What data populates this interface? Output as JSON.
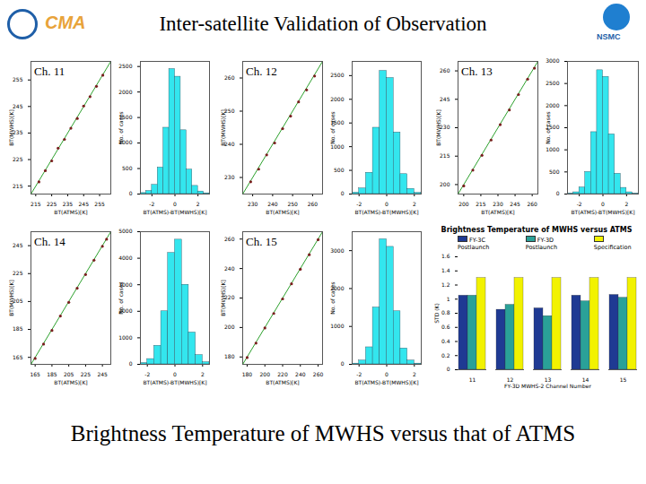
{
  "title": "Inter-satellite Validation of Observation",
  "logos": {
    "left": "CMA",
    "right": "NSMC"
  },
  "caption": "Brightness Temperature of MWHS versus that of ATMS",
  "chart_data": [
    {
      "type": "scatter",
      "title": "Ch. 11",
      "xlabel": "BT(ATMS)[K]",
      "ylabel": "BT(MWHS)[K]",
      "xlim": [
        212,
        262
      ],
      "xticks": [
        215,
        225,
        235,
        245,
        255
      ],
      "ylim": [
        212,
        262
      ],
      "yticks": [
        215,
        225,
        235,
        245,
        255
      ],
      "x": [
        217,
        221,
        225,
        229,
        233,
        237,
        241,
        245,
        249,
        253,
        257
      ],
      "y": [
        216.6,
        220.8,
        224.5,
        229.3,
        232.6,
        236.8,
        240.5,
        245.2,
        248.7,
        252.6,
        256.8
      ],
      "color": "#7a1f1f"
    },
    {
      "type": "histogram",
      "xlabel": "BT(ATMS)-BT(MWHS)[K]",
      "ylabel": "No. of cases",
      "bins": [
        -3,
        -2.5,
        -2,
        -1.5,
        -1,
        -0.5,
        0,
        0.5,
        1,
        1.5,
        2,
        2.5,
        3
      ],
      "values": [
        20,
        60,
        180,
        520,
        1300,
        2450,
        2300,
        1250,
        480,
        160,
        50,
        15
      ],
      "xlim": [
        -3,
        3
      ],
      "xticks": [
        -2,
        0,
        2
      ],
      "ylim": [
        0,
        2600
      ],
      "yticks": [
        0,
        500,
        1000,
        1500,
        2000,
        2500
      ],
      "color": "#33e6ee"
    },
    {
      "type": "scatter",
      "title": "Ch. 12",
      "xlabel": "BT(ATMS)[K]",
      "ylabel": "BT(MWHS)[K]",
      "xlim": [
        225,
        265
      ],
      "xticks": [
        230,
        240,
        250,
        260
      ],
      "ylim": [
        225,
        265
      ],
      "yticks": [
        230,
        240,
        250,
        260
      ],
      "x": [
        229,
        233,
        237,
        241,
        245,
        249,
        253,
        257,
        261
      ],
      "y": [
        228.7,
        232.5,
        236.8,
        240.4,
        244.7,
        248.5,
        252.8,
        256.4,
        260.6
      ],
      "color": "#7a1f1f"
    },
    {
      "type": "histogram",
      "xlabel": "BT(ATMS)-BT(MWHS)[K]",
      "ylabel": "No. of cases",
      "bins": [
        -2.5,
        -2,
        -1.5,
        -1,
        -0.5,
        0,
        0.5,
        1,
        1.5,
        2,
        2.5
      ],
      "values": [
        30,
        120,
        450,
        1400,
        2600,
        2450,
        1300,
        420,
        110,
        25
      ],
      "xlim": [
        -2.5,
        2.5
      ],
      "xticks": [
        -2,
        0,
        2
      ],
      "ylim": [
        0,
        2800
      ],
      "yticks": [
        0,
        500,
        1000,
        1500,
        2000,
        2500
      ],
      "color": "#33e6ee"
    },
    {
      "type": "scatter",
      "title": "Ch. 13",
      "xlabel": "BT(ATMS)[K]",
      "ylabel": "BT(MWHS)[K]",
      "xlim": [
        195,
        265
      ],
      "xticks": [
        200,
        215,
        230,
        245,
        260
      ],
      "ylim": [
        195,
        265
      ],
      "yticks": [
        200,
        215,
        230,
        245,
        260
      ],
      "x": [
        200,
        208,
        216,
        224,
        232,
        240,
        248,
        256,
        262
      ],
      "y": [
        199.3,
        207.6,
        215.4,
        223.5,
        231.6,
        239.4,
        247.5,
        255.6,
        261.4
      ],
      "color": "#7a1f1f"
    },
    {
      "type": "histogram",
      "xlabel": "BT(ATMS)-BT(MWHS)[K]",
      "ylabel": "No. of cases",
      "bins": [
        -3,
        -2.5,
        -2,
        -1.5,
        -1,
        -0.5,
        0,
        0.5,
        1,
        1.5,
        2,
        2.5,
        3
      ],
      "values": [
        10,
        40,
        150,
        500,
        1400,
        2800,
        2650,
        1350,
        460,
        140,
        40,
        10
      ],
      "xlim": [
        -3,
        3
      ],
      "xticks": [
        -2,
        0,
        2
      ],
      "ylim": [
        0,
        3000
      ],
      "yticks": [
        0,
        500,
        1000,
        1500,
        2000,
        2500,
        3000
      ],
      "color": "#33e6ee"
    },
    {
      "type": "scatter",
      "title": "Ch. 14",
      "xlabel": "BT(ATMS)[K]",
      "ylabel": "BT(MWHS)[K]",
      "xlim": [
        160,
        255
      ],
      "xticks": [
        165,
        185,
        205,
        225,
        245
      ],
      "ylim": [
        160,
        255
      ],
      "yticks": [
        165,
        185,
        205,
        225,
        245
      ],
      "x": [
        165,
        175,
        185,
        195,
        205,
        215,
        225,
        235,
        245,
        250
      ],
      "y": [
        164.2,
        174.5,
        184.3,
        194.6,
        204.4,
        214.5,
        224.3,
        234.6,
        244.5,
        249.6
      ],
      "color": "#7a1f1f"
    },
    {
      "type": "histogram",
      "xlabel": "BT(ATMS)-BT(MWHS)[K]",
      "ylabel": "No. of cases",
      "bins": [
        -2.5,
        -2,
        -1.5,
        -1,
        -0.5,
        0,
        0.5,
        1,
        1.5,
        2,
        2.5
      ],
      "values": [
        50,
        200,
        700,
        2000,
        4200,
        4700,
        3000,
        1200,
        350,
        80
      ],
      "xlim": [
        -2.5,
        2.5
      ],
      "xticks": [
        -2,
        0,
        2
      ],
      "ylim": [
        0,
        5000
      ],
      "yticks": [
        0,
        1000,
        2000,
        3000,
        4000,
        5000
      ],
      "color": "#33e6ee"
    },
    {
      "type": "scatter",
      "title": "Ch. 15",
      "xlabel": "BT(ATMS)[K]",
      "ylabel": "BT(MWHS)[K]",
      "xlim": [
        175,
        265
      ],
      "xticks": [
        180,
        200,
        220,
        240,
        260
      ],
      "ylim": [
        175,
        265
      ],
      "yticks": [
        180,
        200,
        220,
        240,
        260
      ],
      "x": [
        180,
        190,
        200,
        210,
        220,
        230,
        240,
        250,
        260
      ],
      "y": [
        179.6,
        189.4,
        199.7,
        209.5,
        219.4,
        229.6,
        239.5,
        249.4,
        259.6
      ],
      "color": "#7a1f1f"
    },
    {
      "type": "histogram",
      "xlabel": "BT(ATMS)-BT(MWHS)[K]",
      "ylabel": "No. of cases",
      "bins": [
        -2.5,
        -2,
        -1.5,
        -1,
        -0.5,
        0,
        0.5,
        1,
        1.5,
        2,
        2.5
      ],
      "values": [
        20,
        100,
        450,
        1500,
        3300,
        3100,
        1400,
        420,
        100,
        20
      ],
      "xlim": [
        -2.5,
        2.5
      ],
      "xticks": [
        -2,
        0,
        2
      ],
      "ylim": [
        0,
        3500
      ],
      "yticks": [
        0,
        1000,
        2000,
        3000
      ],
      "color": "#33e6ee"
    },
    {
      "type": "bar",
      "title": "Brightness Temperature of MWHS versus ATMS",
      "xlabel": "FY-3D MWHS-2 Channel Number",
      "ylabel": "STD (K)",
      "categories": [
        "11",
        "12",
        "13",
        "14",
        "15"
      ],
      "series": [
        {
          "name": "FY-3C Postlaunch",
          "color": "#1f3a93",
          "values": [
            1.05,
            0.85,
            0.87,
            1.05,
            1.06
          ]
        },
        {
          "name": "FY-3D Postlaunch",
          "color": "#2aa198",
          "values": [
            1.05,
            0.92,
            0.76,
            0.97,
            1.02
          ]
        },
        {
          "name": "Specification",
          "color": "#f2f200",
          "values": [
            1.3,
            1.3,
            1.3,
            1.3,
            1.3
          ]
        }
      ],
      "ylim": [
        0,
        1.6
      ],
      "yticks": [
        0,
        0.2,
        0.4,
        0.6,
        0.8,
        1,
        1.2,
        1.4,
        1.6
      ],
      "legend": "top-left"
    }
  ]
}
